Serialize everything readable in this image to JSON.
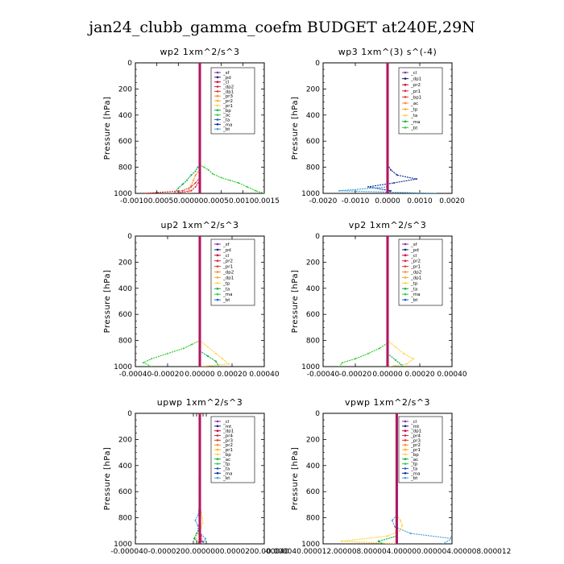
{
  "figure_title": "jan24_clubb_gamma_coefm  BUDGET at240E,29N",
  "colors": {
    "sf": "#7f2fb0",
    "pd": "#2d1a6e",
    "cl": "#cc0033",
    "dp2": "#dd2244",
    "dp1": "#e8333a",
    "pr3": "#ff8c1a",
    "pr2": "#ffaa2a",
    "pr1": "#ffd23f",
    "bp": "#00b050",
    "ac": "#33cc33",
    "tp": "#1f5fd0",
    "ta": "#0a2a8a",
    "ma": "#4aa0d8",
    "bt": "#22d0e0",
    "mt": "#5a1a8a",
    "pr4": "#e05020",
    "bp1": "#22aa44",
    "ta_dark": "#123a9a"
  },
  "chart_data": [
    {
      "type": "line",
      "title": "wp2  1xm^2/s^3",
      "ylabel": "Pressure [hPa]",
      "ylim": [
        1000,
        0
      ],
      "xlim": [
        -0.0015,
        0.0015
      ],
      "xticks": [
        "-0.0010",
        "-0.0005",
        "0.0000",
        "0.0005",
        "0.0010",
        "0.0015"
      ],
      "xtick_values": [
        -0.001,
        -0.0005,
        0,
        0.0005,
        0.001,
        0.0015
      ],
      "xtick_label": "-0.00100.00050.000000.00050.00100.0015",
      "yticks": [
        "0",
        "200",
        "400",
        "600",
        "800",
        "1000"
      ],
      "legend": [
        "_sf",
        "_pd",
        "_cl",
        "_dp2",
        "_dp1",
        "_pr3",
        "_pr2",
        "_pr1",
        "_bp",
        "_ac",
        "_ta",
        "_ma",
        "_bt"
      ],
      "series": [
        {
          "name": "_pr1",
          "key": "ac",
          "p": [
            780,
            800,
            820,
            850,
            880,
            900,
            920,
            950,
            980,
            1000
          ],
          "v": [
            0,
            0.0001,
            0.0002,
            0.0003,
            0.0005,
            0.0007,
            0.0009,
            0.0011,
            0.0013,
            0.0015
          ]
        },
        {
          "name": "_bp",
          "key": "bp",
          "p": [
            780,
            800,
            830,
            860,
            900,
            930,
            960,
            1000
          ],
          "v": [
            0,
            -5e-05,
            -0.0001,
            -0.0002,
            -0.0003,
            -0.0004,
            -0.0005,
            -0.0006
          ]
        },
        {
          "name": "_pr3",
          "key": "pr3",
          "p": [
            820,
            860,
            900,
            940,
            970,
            1000
          ],
          "v": [
            0,
            -0.0001,
            -0.00015,
            -0.0002,
            -0.00025,
            -0.0003
          ]
        },
        {
          "name": "_dp1",
          "key": "dp1",
          "p": [
            880,
            920,
            950,
            980,
            1000
          ],
          "v": [
            0,
            -0.0001,
            -0.0002,
            -0.0004,
            -0.0013
          ]
        },
        {
          "name": "_dp2",
          "key": "dp2",
          "p": [
            900,
            950,
            980,
            1000
          ],
          "v": [
            0,
            -0.0001,
            -0.0002,
            -0.0006
          ]
        },
        {
          "name": "_sf",
          "key": "sf",
          "p": [
            0,
            1000
          ],
          "v": [
            0,
            0
          ]
        }
      ]
    },
    {
      "type": "line",
      "title": "wp3  1xm^(3) s^(-4)",
      "ylabel": "Pressure [hPa]",
      "ylim": [
        1000,
        0
      ],
      "xlim": [
        -0.002,
        0.002
      ],
      "xticks": [
        "-0.0020",
        "-0.0010",
        "0.0000",
        "0.0010",
        "0.0020"
      ],
      "xtick_values": [
        -0.002,
        -0.001,
        0,
        0.001,
        0.002
      ],
      "xtick_label": "",
      "yticks": [
        "0",
        "200",
        "400",
        "600",
        "800",
        "1000"
      ],
      "legend": [
        "_cl",
        "_dp1",
        "_pr2",
        "_pr1",
        "_bp1",
        "_ac",
        "_tp",
        "_ta",
        "_ma",
        "_bt"
      ],
      "series": [
        {
          "name": "_ta",
          "key": "ta_dark",
          "p": [
            780,
            820,
            860,
            890,
            920,
            950,
            980,
            1000
          ],
          "v": [
            0,
            0.0001,
            0.0003,
            0.0009,
            0.0002,
            -0.0006,
            0.0001,
            0
          ]
        },
        {
          "name": "_ma",
          "key": "ma",
          "p": [
            950,
            980,
            1000
          ],
          "v": [
            0,
            -0.0015,
            0.0015
          ]
        },
        {
          "name": "_cl",
          "key": "cl",
          "p": [
            0,
            1000
          ],
          "v": [
            0,
            0
          ]
        }
      ]
    },
    {
      "type": "line",
      "title": "up2  1xm^2/s^3",
      "ylabel": "Pressure [hPa]",
      "ylim": [
        1000,
        0
      ],
      "xlim": [
        -0.0004,
        0.0004
      ],
      "xticks": [
        "-0.00040",
        "-0.00020",
        "0.00000",
        "0.00020",
        "0.00040"
      ],
      "xtick_values": [
        -0.0004,
        -0.0002,
        0,
        0.0002,
        0.0004
      ],
      "xtick_label": "",
      "yticks": [
        "0",
        "200",
        "400",
        "600",
        "800",
        "1000"
      ],
      "legend": [
        "_sf",
        "_pd",
        "_cl",
        "_pr2",
        "_pr1",
        "_dp2",
        "_dp1",
        "_tp",
        "_ta",
        "_ma",
        "_bt"
      ],
      "series": [
        {
          "name": "_dp1",
          "key": "ac",
          "p": [
            800,
            830,
            860,
            900,
            940,
            970,
            1000
          ],
          "v": [
            0,
            -5e-05,
            -0.0001,
            -0.0002,
            -0.0003,
            -0.00035,
            -0.0003
          ]
        },
        {
          "name": "_pr1",
          "key": "pr1",
          "p": [
            800,
            850,
            900,
            940,
            980,
            1000
          ],
          "v": [
            0,
            5e-05,
            0.0001,
            0.00014,
            0.00018,
            0
          ]
        },
        {
          "name": "_dp2",
          "key": "bp",
          "p": [
            880,
            920,
            960,
            1000
          ],
          "v": [
            0,
            5e-05,
            0.0001,
            0.00012
          ]
        },
        {
          "name": "_cl",
          "key": "cl",
          "p": [
            0,
            1000
          ],
          "v": [
            0,
            0
          ]
        }
      ]
    },
    {
      "type": "line",
      "title": "vp2  1xm^2/s^3",
      "ylabel": "Pressure [hPa]",
      "ylim": [
        1000,
        0
      ],
      "xlim": [
        -0.0004,
        0.0004
      ],
      "xticks": [
        "-0.00040",
        "-0.00020",
        "0.00000",
        "0.00020",
        "0.00040"
      ],
      "xtick_values": [
        -0.0004,
        -0.0002,
        0,
        0.0002,
        0.0004
      ],
      "xtick_label": "",
      "yticks": [
        "0",
        "200",
        "400",
        "600",
        "800",
        "1000"
      ],
      "legend": [
        "_sf",
        "_pd",
        "_cl",
        "_pr2",
        "_pr1",
        "_dp2",
        "_dp1",
        "_tp",
        "_ta",
        "_ma",
        "_bt"
      ],
      "series": [
        {
          "name": "_dp1",
          "key": "ac",
          "p": [
            820,
            860,
            900,
            940,
            970,
            1000
          ],
          "v": [
            0,
            -5e-05,
            -0.00012,
            -0.0002,
            -0.00028,
            -0.0003
          ]
        },
        {
          "name": "_pr1",
          "key": "pr1",
          "p": [
            800,
            850,
            900,
            940,
            980,
            1000
          ],
          "v": [
            0,
            5e-05,
            0.0001,
            0.00016,
            0.00012,
            0
          ]
        },
        {
          "name": "_dp2",
          "key": "bp",
          "p": [
            900,
            950,
            1000
          ],
          "v": [
            0,
            5e-05,
            0.0001
          ]
        },
        {
          "name": "_cl",
          "key": "cl",
          "p": [
            0,
            1000
          ],
          "v": [
            0,
            0
          ]
        }
      ]
    },
    {
      "type": "line",
      "title": "upwp  1xm^2/s^3",
      "ylabel": "Pressure [hPa]",
      "ylim": [
        1000,
        0
      ],
      "xlim": [
        -0.0004,
        0.0004
      ],
      "xticks": [
        "-0.000040",
        "-0.000020",
        "0.000000",
        "0.000020",
        "0.000040"
      ],
      "xtick_values": [
        -4e-05,
        -2e-05,
        0,
        2e-05,
        4e-05
      ],
      "xtick_label": "-0.000040-0.0000200.0000000.0000200.000040",
      "yticks": [
        "0",
        "200",
        "400",
        "600",
        "800",
        "1000"
      ],
      "legend": [
        "_cl",
        "_mt",
        "_dp1",
        "_pr4",
        "_pr3",
        "_pr2",
        "_pr1",
        "_bp",
        "_ac",
        "_tp",
        "_ta",
        "_ma",
        "_bt"
      ],
      "series": [
        {
          "name": "_ta",
          "key": "ma",
          "p": [
            0,
            150,
            300,
            500,
            700,
            780,
            820,
            860,
            900,
            960,
            1000
          ],
          "v": [
            0,
            -3e-06,
            -3e-06,
            -4e-06,
            -2e-06,
            -1e-05,
            -2.8e-05,
            -1.2e-05,
            -1e-05,
            3.5e-05,
            2e-05
          ]
        },
        {
          "name": "_pr1",
          "key": "pr1",
          "p": [
            0,
            100,
            700,
            760,
            800,
            840,
            880,
            920,
            960,
            1000
          ],
          "v": [
            0,
            2e-06,
            2e-06,
            8e-06,
            1.5e-05,
            1.8e-05,
            5e-06,
            -1e-05,
            -2.5e-05,
            0
          ]
        },
        {
          "name": "_ac",
          "key": "bp",
          "p": [
            880,
            920,
            960,
            1000
          ],
          "v": [
            0,
            -2e-05,
            -3.5e-05,
            0
          ]
        },
        {
          "name": "_cl",
          "key": "dp2",
          "p": [
            900,
            940,
            980,
            1000
          ],
          "v": [
            0,
            8e-06,
            1.2e-05,
            0
          ]
        },
        {
          "name": "_mt",
          "key": "mt",
          "p": [
            0,
            100,
            1000
          ],
          "v": [
            0,
            2e-06,
            0
          ]
        }
      ]
    },
    {
      "type": "line",
      "title": "vpwp  1xm^2/s^3",
      "ylabel": "Pressure [hPa]",
      "ylim": [
        1000,
        0
      ],
      "xlim": [
        -0.00016,
        0.00012
      ],
      "xticks": [],
      "xtick_values": [],
      "xtick_label": "-0.000040.000012.000008.000004.000000.000004.000008.000012",
      "yticks": [
        "0",
        "200",
        "400",
        "600",
        "800",
        "1000"
      ],
      "legend": [
        "_cl",
        "_mt",
        "_dp1",
        "_pr4",
        "_pr3",
        "_pr2",
        "_pr1",
        "_bp",
        "_ac",
        "_tp",
        "_ta",
        "_ma",
        "_bt"
      ],
      "series": [
        {
          "name": "_ta",
          "key": "ma",
          "p": [
            780,
            820,
            870,
            920,
            960,
            1000
          ],
          "v": [
            0,
            -1e-05,
            -4e-06,
            3e-05,
            0.00012,
            0.0001
          ]
        },
        {
          "name": "_pr1",
          "key": "pr1",
          "p": [
            780,
            820,
            860,
            900,
            940,
            980,
            1000
          ],
          "v": [
            0,
            8e-06,
            1.2e-05,
            6e-06,
            -2e-05,
            -0.00012,
            0
          ]
        },
        {
          "name": "_bp",
          "key": "bp",
          "p": [
            940,
            980,
            1000
          ],
          "v": [
            0,
            -4e-05,
            -3e-05
          ]
        },
        {
          "name": "_mt",
          "key": "mt",
          "p": [
            0,
            1000
          ],
          "v": [
            0,
            0
          ]
        }
      ]
    }
  ]
}
